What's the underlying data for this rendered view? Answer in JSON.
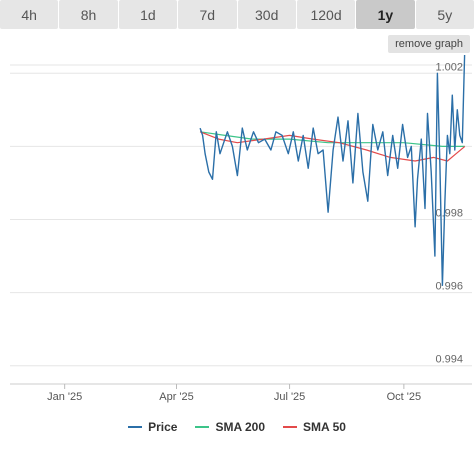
{
  "tabs": [
    {
      "label": "4h",
      "active": false
    },
    {
      "label": "8h",
      "active": false
    },
    {
      "label": "1d",
      "active": false
    },
    {
      "label": "7d",
      "active": false
    },
    {
      "label": "30d",
      "active": false
    },
    {
      "label": "120d",
      "active": false
    },
    {
      "label": "1y",
      "active": true
    },
    {
      "label": "5y",
      "active": false
    }
  ],
  "remove_graph_label": "remove graph",
  "colors": {
    "price": "#2b6fa8",
    "sma200": "#3cc489",
    "sma50": "#e34a4a"
  },
  "chart_data": {
    "type": "line",
    "x_axis": {
      "ticks": [
        "Jan '25",
        "Apr '25",
        "Jul '25",
        "Oct '25"
      ],
      "range": [
        "2024-11-18",
        "2025-11-20"
      ]
    },
    "y_axis": {
      "range": [
        0.9935,
        1.0025
      ],
      "ticks": [
        "0.994",
        "0.996",
        "0.998",
        "1.002"
      ]
    },
    "legend": {
      "position": "bottom"
    },
    "series": [
      {
        "name": "Price",
        "points": [
          [
            "2025-04-20",
            1.0005
          ],
          [
            "2025-04-22",
            1.0003
          ],
          [
            "2025-04-24",
            0.9998
          ],
          [
            "2025-04-27",
            0.9993
          ],
          [
            "2025-04-30",
            0.9991
          ],
          [
            "2025-05-03",
            1.0004
          ],
          [
            "2025-05-06",
            0.9998
          ],
          [
            "2025-05-09",
            1.0001
          ],
          [
            "2025-05-12",
            1.0004
          ],
          [
            "2025-05-16",
            1.0
          ],
          [
            "2025-05-20",
            0.9992
          ],
          [
            "2025-05-24",
            1.0005
          ],
          [
            "2025-05-28",
            0.9999
          ],
          [
            "2025-06-02",
            1.0004
          ],
          [
            "2025-06-06",
            1.0001
          ],
          [
            "2025-06-11",
            1.0002
          ],
          [
            "2025-06-16",
            0.9999
          ],
          [
            "2025-06-20",
            1.0004
          ],
          [
            "2025-06-25",
            1.0003
          ],
          [
            "2025-06-30",
            0.9998
          ],
          [
            "2025-07-04",
            1.0004
          ],
          [
            "2025-07-08",
            0.9996
          ],
          [
            "2025-07-12",
            1.0003
          ],
          [
            "2025-07-16",
            0.9994
          ],
          [
            "2025-07-20",
            1.0005
          ],
          [
            "2025-07-24",
            0.9998
          ],
          [
            "2025-07-28",
            0.9999
          ],
          [
            "2025-08-01",
            0.9982
          ],
          [
            "2025-08-05",
            0.9999
          ],
          [
            "2025-08-09",
            1.0008
          ],
          [
            "2025-08-13",
            0.9996
          ],
          [
            "2025-08-17",
            1.0007
          ],
          [
            "2025-08-21",
            0.999
          ],
          [
            "2025-08-25",
            1.0009
          ],
          [
            "2025-08-29",
            0.9993
          ],
          [
            "2025-09-02",
            0.9985
          ],
          [
            "2025-09-06",
            1.0006
          ],
          [
            "2025-09-10",
            0.9999
          ],
          [
            "2025-09-14",
            1.0004
          ],
          [
            "2025-09-18",
            0.9992
          ],
          [
            "2025-09-22",
            1.0003
          ],
          [
            "2025-09-26",
            0.9994
          ],
          [
            "2025-09-30",
            1.0006
          ],
          [
            "2025-10-04",
            0.9997
          ],
          [
            "2025-10-07",
            1.0
          ],
          [
            "2025-10-10",
            0.9978
          ],
          [
            "2025-10-12",
            0.9991
          ],
          [
            "2025-10-15",
            1.0002
          ],
          [
            "2025-10-18",
            0.9983
          ],
          [
            "2025-10-20",
            1.0009
          ],
          [
            "2025-10-23",
            0.9993
          ],
          [
            "2025-10-26",
            0.997
          ],
          [
            "2025-10-28",
            1.002
          ],
          [
            "2025-10-30",
            0.9995
          ],
          [
            "2025-11-01",
            0.9962
          ],
          [
            "2025-11-03",
            0.9985
          ],
          [
            "2025-11-05",
            1.0003
          ],
          [
            "2025-11-07",
            0.9998
          ],
          [
            "2025-11-09",
            1.0014
          ],
          [
            "2025-11-11",
            0.9999
          ],
          [
            "2025-11-13",
            1.001
          ],
          [
            "2025-11-15",
            1.0003
          ],
          [
            "2025-11-17",
            1.0001
          ],
          [
            "2025-11-19",
            1.0027
          ]
        ]
      },
      {
        "name": "SMA 200",
        "points": [
          [
            "2025-04-20",
            1.0004
          ],
          [
            "2025-05-10",
            1.0003
          ],
          [
            "2025-06-01",
            1.0002
          ],
          [
            "2025-07-01",
            1.0002
          ],
          [
            "2025-08-01",
            1.0001
          ],
          [
            "2025-09-01",
            1.0001
          ],
          [
            "2025-10-01",
            1.0001
          ],
          [
            "2025-11-01",
            1.0
          ],
          [
            "2025-11-19",
            1.0
          ]
        ]
      },
      {
        "name": "SMA 50",
        "points": [
          [
            "2025-04-20",
            1.0004
          ],
          [
            "2025-05-05",
            1.0002
          ],
          [
            "2025-05-20",
            1.0001
          ],
          [
            "2025-06-10",
            1.0002
          ],
          [
            "2025-07-01",
            1.0003
          ],
          [
            "2025-07-20",
            1.0002
          ],
          [
            "2025-08-10",
            1.0001
          ],
          [
            "2025-09-01",
            0.9999
          ],
          [
            "2025-09-20",
            0.9997
          ],
          [
            "2025-10-10",
            0.9996
          ],
          [
            "2025-10-25",
            0.9997
          ],
          [
            "2025-11-05",
            0.9996
          ],
          [
            "2025-11-12",
            0.9998
          ],
          [
            "2025-11-19",
            1.0
          ]
        ]
      }
    ]
  }
}
